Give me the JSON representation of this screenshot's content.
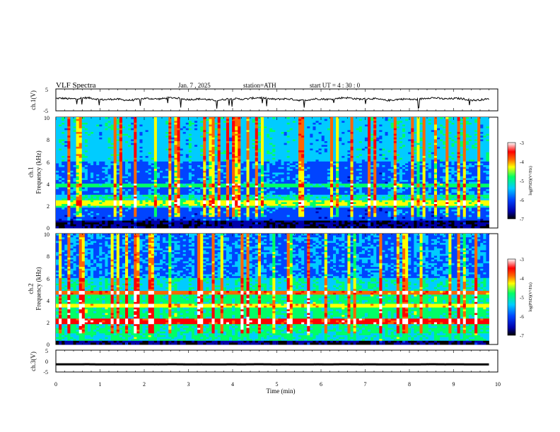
{
  "header": {
    "title": "VLF  Spectra",
    "date": "Jan.  7  , 2025",
    "station": "station=ATH",
    "start_ut": "start  UT  =   4  : 30 : 0"
  },
  "colors": {
    "background": "#ffffff",
    "axes": "#000000",
    "spectrogram_scale": [
      "#000000",
      "#0000aa",
      "#0044ff",
      "#00ccff",
      "#00ff66",
      "#ffff00",
      "#ff6600",
      "#ff0000",
      "#ffffff"
    ]
  },
  "chart_data": [
    {
      "type": "line",
      "name": "ch1-waveform",
      "ylabel": "ch.1(V)",
      "ylim": [
        -5,
        5
      ],
      "yticks": [
        "5",
        "-5"
      ],
      "xlim": [
        0,
        10
      ],
      "x_end": 9.8,
      "approx_level": 0.4,
      "approx_amplitude": 0.7
    },
    {
      "type": "heatmap",
      "name": "ch1-spectrogram",
      "ylabel": "ch.1\nFrequency (kHz)",
      "ylim": [
        0,
        10
      ],
      "yticks": [
        "0",
        "2",
        "4",
        "6",
        "8",
        "10"
      ],
      "xlim": [
        0,
        10
      ],
      "x_end": 9.8,
      "colorbar": {
        "label": "log(PSD)(V²/Hz)",
        "range": [
          -7,
          -3
        ],
        "ticks": [
          "-3",
          "-4",
          "-5",
          "-6",
          "-7"
        ]
      }
    },
    {
      "type": "heatmap",
      "name": "ch2-spectrogram",
      "ylabel": "ch.2\nFrequency (kHz)",
      "ylim": [
        0,
        10
      ],
      "yticks": [
        "0",
        "2",
        "4",
        "6",
        "8",
        "10"
      ],
      "xlim": [
        0,
        10
      ],
      "x_end": 9.8,
      "colorbar": {
        "label": "log(PSD)(V²/Hz)",
        "range": [
          -7,
          -3
        ],
        "ticks": [
          "-3",
          "-4",
          "-5",
          "-6",
          "-7"
        ]
      }
    },
    {
      "type": "line",
      "name": "ch3-waveform",
      "ylabel": "ch.3(V)",
      "ylim": [
        -5,
        5
      ],
      "yticks": [
        "5",
        "0",
        "-5"
      ],
      "xlim": [
        0,
        10
      ],
      "x_end": 9.8,
      "approx_level": -1.5,
      "approx_amplitude": 0.05
    }
  ],
  "xaxis": {
    "label": "Time  (min)",
    "ticks": [
      "0",
      "1",
      "2",
      "3",
      "4",
      "5",
      "6",
      "7",
      "8",
      "9",
      "10"
    ]
  }
}
